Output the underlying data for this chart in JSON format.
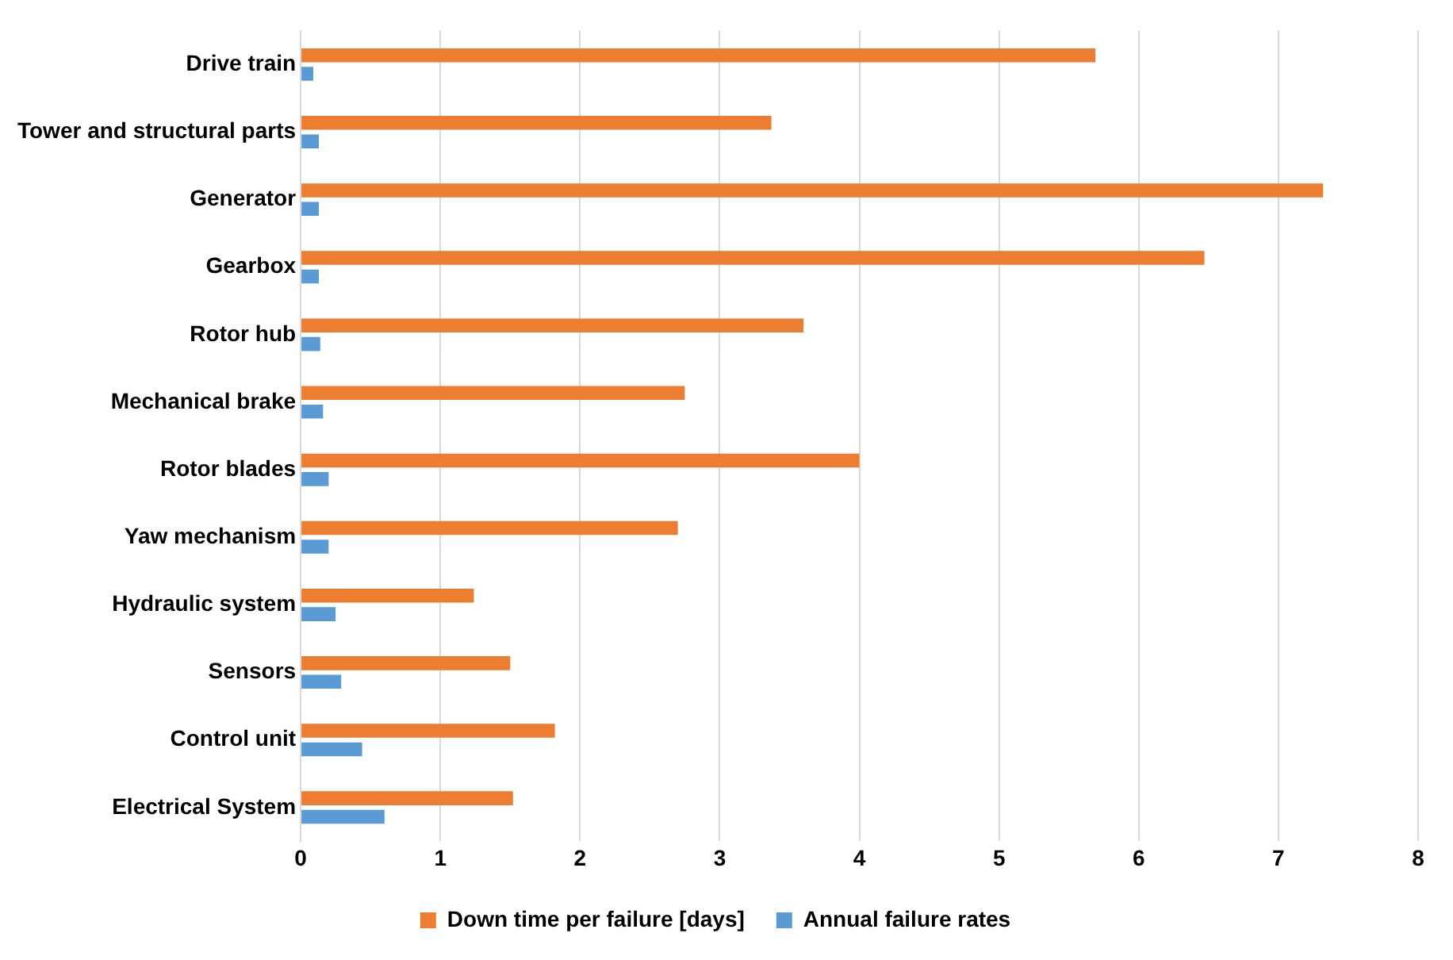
{
  "chart_data": {
    "type": "bar",
    "orientation": "horizontal",
    "categories": [
      "Drive train",
      "Tower and structural parts",
      "Generator",
      "Gearbox",
      "Rotor hub",
      "Mechanical brake",
      "Rotor blades",
      "Yaw mechanism",
      "Hydraulic system",
      "Sensors",
      "Control unit",
      "Electrical System"
    ],
    "series": [
      {
        "name": "Down time per failure [days]",
        "color": "#ed7d31",
        "values": [
          5.69,
          3.37,
          7.32,
          6.47,
          3.6,
          2.75,
          4.0,
          2.7,
          1.24,
          1.5,
          1.82,
          1.52
        ]
      },
      {
        "name": "Annual failure rates",
        "color": "#5b9bd5",
        "values": [
          0.09,
          0.13,
          0.13,
          0.13,
          0.14,
          0.16,
          0.2,
          0.2,
          0.25,
          0.29,
          0.44,
          0.6
        ]
      }
    ],
    "xlim": [
      0,
      8
    ],
    "xticks": [
      0,
      1,
      2,
      3,
      4,
      5,
      6,
      7,
      8
    ],
    "grid": "x",
    "legend": "bottom"
  }
}
